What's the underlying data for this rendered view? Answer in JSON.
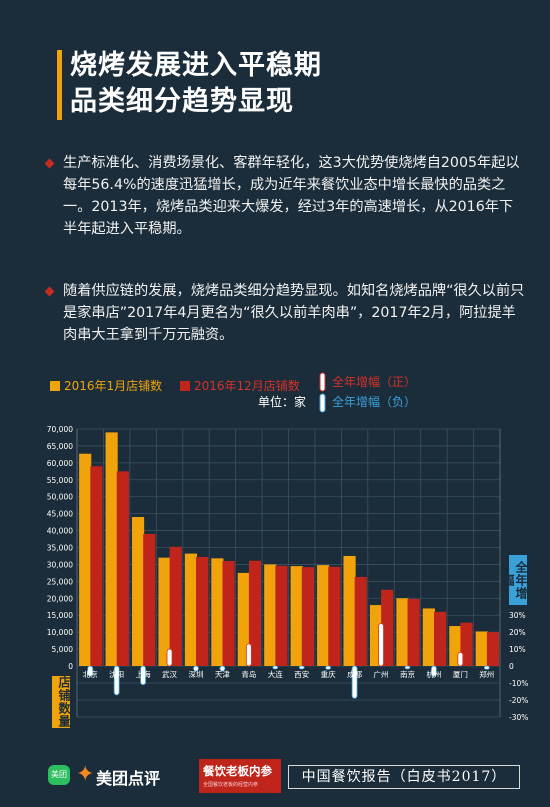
{
  "header": {
    "title_line1": "烧烤发展进入平稳期",
    "title_line2": "品类细分趋势显现"
  },
  "paragraphs": [
    "生产标准化、消费场景化、客群年轻化，这3大优势使烧烤自2005年起以每年56.4%的速度迅猛增长，成为近年来餐饮业态中增长最快的品类之一。2013年，烧烤品类迎来大爆发，经过3年的高速增长，从2016年下半年起进入平稳期。",
    "随着供应链的发展，烧烤品类细分趋势显现。如知名烧烤品牌“很久以前只是家串店”2017年4月更名为“很久以前羊肉串”，2017年2月，阿拉提羊肉串大王拿到千万元融资。"
  ],
  "legend": {
    "jan": "2016年1月店铺数",
    "dec": "2016年12月店铺数",
    "pos": "全年增幅（正）",
    "neg": "全年增幅（负）",
    "unit": "单位：家"
  },
  "colors": {
    "jan": "#f0a30a",
    "dec": "#c0251c",
    "pos_text": "#d63027",
    "neg_text": "#3aa0d8",
    "accent": "#f0a30a"
  },
  "chart_data": {
    "type": "bar",
    "categories": [
      "北京",
      "沈阳",
      "上海",
      "武汉",
      "深圳",
      "天津",
      "青岛",
      "大连",
      "西安",
      "重庆",
      "成都",
      "广州",
      "南京",
      "杭州",
      "厦门",
      "郑州"
    ],
    "series": [
      {
        "name": "2016年1月店铺数",
        "values": [
          62700,
          69000,
          44000,
          32000,
          33200,
          31800,
          27500,
          30000,
          29500,
          29800,
          32500,
          18000,
          20000,
          17000,
          11800,
          10200
        ]
      },
      {
        "name": "2016年12月店铺数",
        "values": [
          59000,
          57500,
          39000,
          35200,
          32200,
          31000,
          31100,
          29600,
          29200,
          29300,
          26300,
          22500,
          19800,
          16000,
          12800,
          10000
        ]
      },
      {
        "name": "全年增幅",
        "values": [
          -6,
          -17,
          -11,
          10,
          -3,
          -3,
          13,
          -1,
          -1,
          -2,
          -19,
          25,
          -1,
          -6,
          8,
          -2
        ]
      }
    ],
    "ylim": [
      0,
      70000
    ],
    "y_ticks": [
      "0",
      "5000",
      "10000",
      "15000",
      "20000",
      "25000",
      "30000",
      "35000",
      "40000",
      "45000",
      "50000",
      "55000",
      "60000",
      "65000",
      "70000"
    ],
    "y2lim": [
      -30,
      30
    ],
    "y2_ticks": [
      "30%",
      "20%",
      "10%",
      "0",
      "-10%",
      "-20%",
      "-30%"
    ],
    "ylabel": "店铺数量",
    "y2label": "全年增幅",
    "grid": true,
    "legend_position": "top"
  },
  "footer": {
    "logo_small": "美团",
    "brand1": "美团点评",
    "brand2": "餐饮老板内参",
    "brand2_sub": "全国餐饮老板的经营内参",
    "report": "中国餐饮报告（白皮书2017）"
  }
}
